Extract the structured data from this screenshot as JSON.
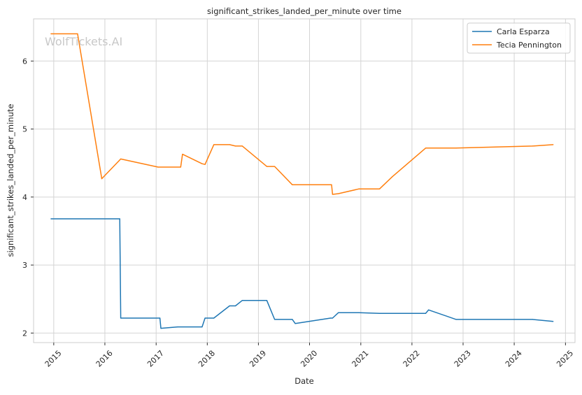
{
  "chart_data": {
    "type": "line",
    "title": "significant_strikes_landed_per_minute over time",
    "xlabel": "Date",
    "ylabel": "significant_strikes_landed_per_minute",
    "watermark": "WolfTickets.AI",
    "x_ticks": [
      "2015",
      "2016",
      "2017",
      "2018",
      "2019",
      "2020",
      "2021",
      "2022",
      "2023",
      "2024",
      "2025"
    ],
    "y_ticks": [
      "2",
      "3",
      "4",
      "5",
      "6"
    ],
    "xlim": [
      "2014-08-10",
      "2025-03-10"
    ],
    "ylim": [
      1.86,
      6.62
    ],
    "grid": true,
    "legend_position": "top-right",
    "series": [
      {
        "name": "Carla Esparza",
        "color": "#1f77b4",
        "x": [
          "2014-12-12",
          "2016-04-16",
          "2016-04-23",
          "2017-01-28",
          "2017-02-04",
          "2017-06-03",
          "2017-11-25",
          "2017-12-16",
          "2018-02-17",
          "2018-06-09",
          "2018-07-21",
          "2018-09-08",
          "2019-03-02",
          "2019-04-27",
          "2019-08-31",
          "2019-09-21",
          "2020-05-30",
          "2020-06-13",
          "2020-07-25",
          "2020-12-19",
          "2021-05-15",
          "2022-04-09",
          "2022-04-30",
          "2022-11-12",
          "2024-05-11",
          "2024-10-05"
        ],
        "values": [
          3.68,
          3.68,
          2.22,
          2.22,
          2.07,
          2.09,
          2.09,
          2.22,
          2.22,
          2.4,
          2.4,
          2.48,
          2.48,
          2.2,
          2.2,
          2.14,
          2.22,
          2.22,
          2.3,
          2.3,
          2.29,
          2.29,
          2.34,
          2.2,
          2.2,
          2.17
        ]
      },
      {
        "name": "Tecia Pennington",
        "color": "#ff7f0e",
        "x": [
          "2014-12-12",
          "2015-06-20",
          "2015-12-10",
          "2016-04-23",
          "2017-01-15",
          "2017-06-25",
          "2017-07-08",
          "2017-11-25",
          "2017-12-16",
          "2018-02-17",
          "2018-06-09",
          "2018-07-21",
          "2018-09-08",
          "2019-03-02",
          "2019-04-27",
          "2019-08-31",
          "2020-06-06",
          "2020-06-13",
          "2020-07-25",
          "2020-12-19",
          "2021-05-15",
          "2021-08-14",
          "2022-04-09",
          "2022-11-12",
          "2024-05-11",
          "2024-10-05"
        ],
        "values": [
          6.4,
          6.4,
          4.27,
          4.56,
          4.44,
          4.44,
          4.63,
          4.49,
          4.48,
          4.77,
          4.77,
          4.75,
          4.75,
          4.45,
          4.45,
          4.18,
          4.18,
          4.04,
          4.05,
          4.12,
          4.12,
          4.3,
          4.72,
          4.72,
          4.75,
          4.77
        ]
      }
    ]
  }
}
